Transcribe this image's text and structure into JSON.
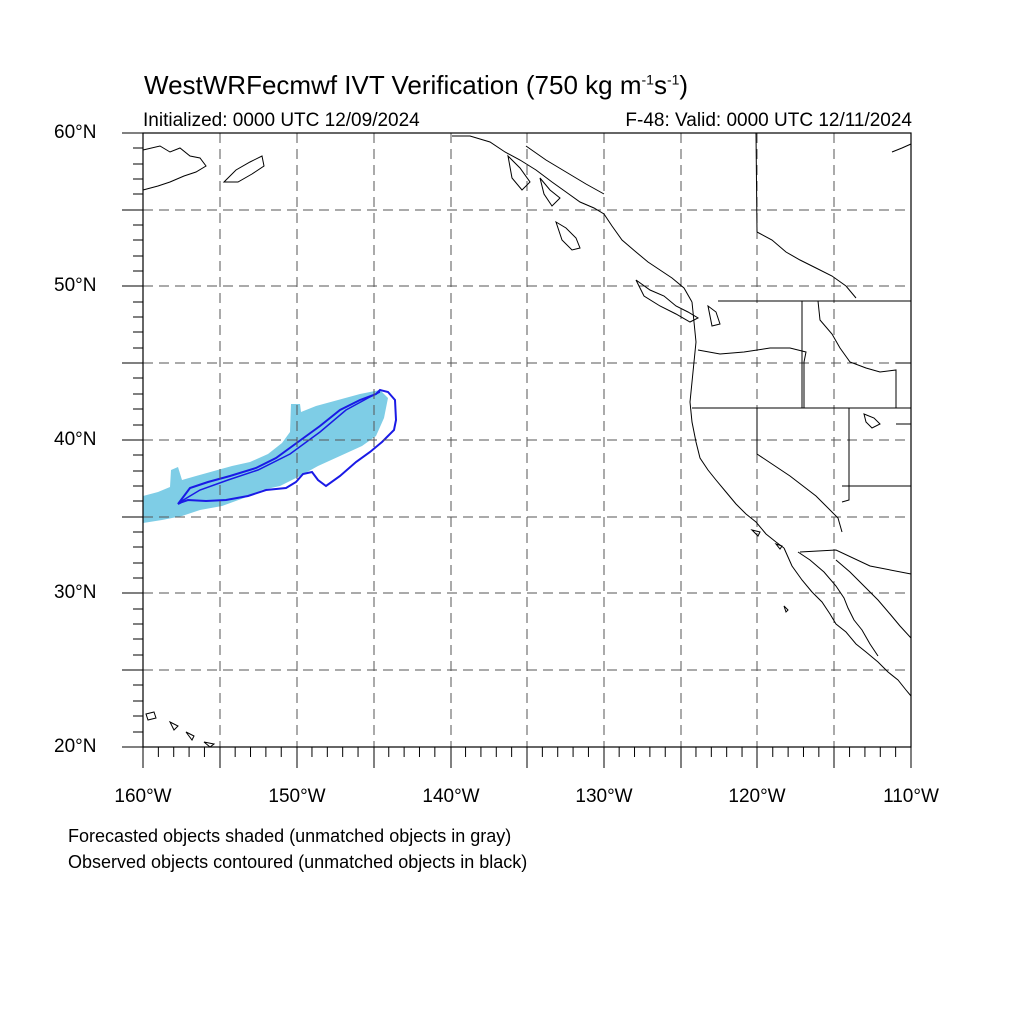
{
  "title": {
    "prefix": "WestWRFecmwf IVT Verification (750 kg m",
    "sup1": "-1",
    "mid": "s",
    "sup2": "-1",
    "suffix": ")"
  },
  "subtitle_left": "Initialized: 0000 UTC 12/09/2024",
  "subtitle_right": "F-48: Valid: 0000 UTC 12/11/2024",
  "lat_labels": [
    "60°N",
    "50°N",
    "40°N",
    "30°N",
    "20°N"
  ],
  "lon_labels": [
    "160°W",
    "150°W",
    "140°W",
    "130°W",
    "120°W",
    "110°W"
  ],
  "legend": {
    "line1": "Forecasted objects shaded (unmatched objects in gray)",
    "line2": "Observed objects contoured (unmatched objects in black)"
  },
  "colors": {
    "forecast_fill": "#7ecde6",
    "observed_contour": "#1a1ae6",
    "coastline": "#000000",
    "grid": "#555555"
  }
}
